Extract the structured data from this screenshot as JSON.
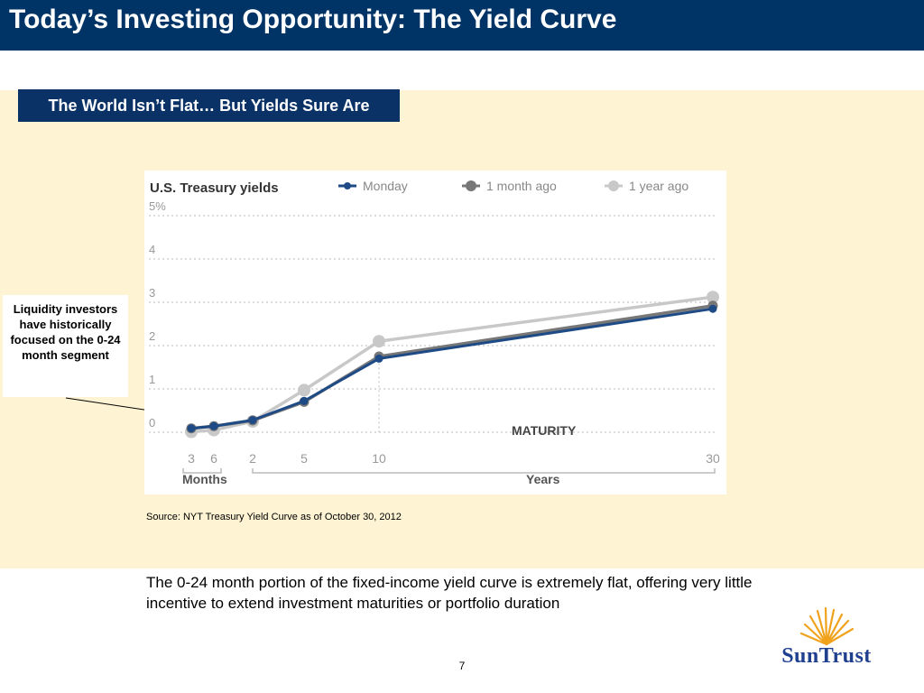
{
  "slide": {
    "title": "Today’s Investing Opportunity: The Yield Curve",
    "subtitle": "The World Isn’t Flat… But Yields Sure Are",
    "callout_text": "Liquidity investors have historically focused on the 0-24 month segment",
    "source": "Source:  NYT Treasury Yield Curve as of October 30, 2012",
    "footnote": "The 0-24 month portion of the fixed-income yield curve is extremely flat, offering very little incentive to extend investment maturities or portfolio duration",
    "page_number": "7",
    "logo_text": "SunTrust"
  },
  "colors": {
    "title_bar": "#003366",
    "panel": "#fef3d3",
    "monday": "#1e4a86",
    "one_month": "#777777",
    "one_year": "#c8c8c8",
    "logo": "#1f3f8f"
  },
  "chart_data": {
    "type": "line",
    "title": "U.S. Treasury yields",
    "x": [
      0.25,
      0.5,
      2,
      5,
      10,
      30
    ],
    "x_tick_labels": [
      "3",
      "6",
      "2",
      "5",
      "10",
      "30"
    ],
    "x_groups": [
      {
        "label": "Months",
        "ticks": [
          "3",
          "6"
        ]
      },
      {
        "label": "Years",
        "ticks": [
          "2",
          "5",
          "10",
          "30"
        ]
      }
    ],
    "xlabel": "MATURITY",
    "ylabel": "",
    "y_tick_labels": [
      "0",
      "1",
      "2",
      "3",
      "4",
      "5%"
    ],
    "ylim": [
      0,
      5
    ],
    "grid": true,
    "legend_position": "top",
    "series": [
      {
        "name": "Monday",
        "key": "monday",
        "values": [
          0.09,
          0.14,
          0.28,
          0.72,
          1.7,
          2.85
        ]
      },
      {
        "name": "1 month ago",
        "key": "one_month",
        "values": [
          0.09,
          0.14,
          0.27,
          0.7,
          1.75,
          2.92
        ]
      },
      {
        "name": "1 year ago",
        "key": "one_year",
        "values": [
          0.01,
          0.05,
          0.25,
          0.97,
          2.1,
          3.12
        ]
      }
    ]
  }
}
